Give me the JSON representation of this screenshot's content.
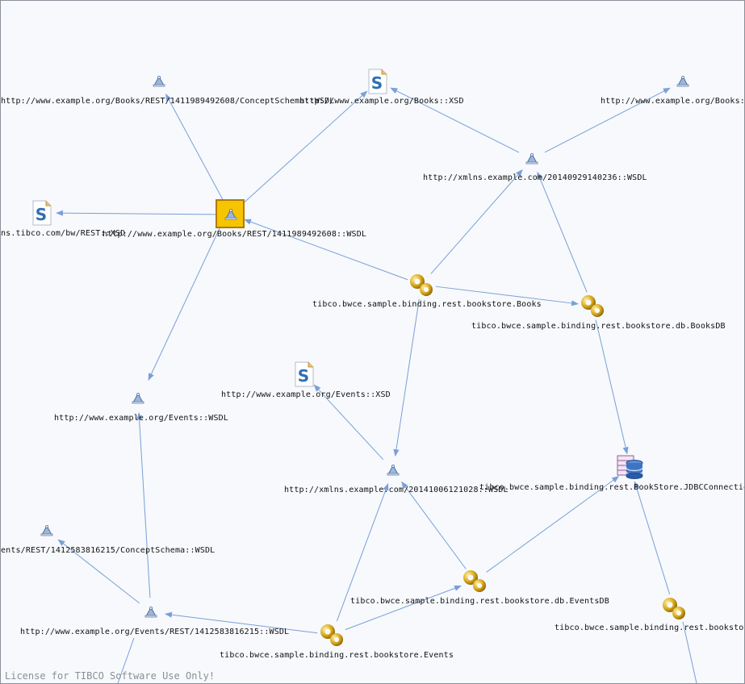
{
  "diagram": {
    "license_text": "License for TIBCO Software Use Only!",
    "nodes": [
      {
        "id": "n1",
        "kind": "wsdl",
        "label": "http://www.example.org/Books/REST/1411989492608/ConceptSchema::WSDL"
      },
      {
        "id": "n2",
        "kind": "xsd",
        "label": "http://www.example.org/Books::XSD"
      },
      {
        "id": "n3",
        "kind": "wsdl",
        "label": "http://www.example.org/Books::"
      },
      {
        "id": "n4",
        "kind": "wsdl",
        "label": "http://xmlns.example.com/20140929140236::WSDL"
      },
      {
        "id": "n5",
        "kind": "xsd",
        "label": "ns.tibco.com/bw/REST::XSD"
      },
      {
        "id": "n6",
        "kind": "wsdl-selected",
        "label": "http://www.example.org/Books/REST/1411989492608::WSDL"
      },
      {
        "id": "n7",
        "kind": "module",
        "label": "tibco.bwce.sample.binding.rest.bookstore.Books"
      },
      {
        "id": "n8",
        "kind": "module",
        "label": "tibco.bwce.sample.binding.rest.bookstore.db.BooksDB"
      },
      {
        "id": "n9",
        "kind": "xsd",
        "label": "http://www.example.org/Events::XSD"
      },
      {
        "id": "n10",
        "kind": "wsdl",
        "label": "http://www.example.org/Events::WSDL"
      },
      {
        "id": "n11",
        "kind": "wsdl",
        "label": "http://xmlns.example.com/20141006121028::WSDL"
      },
      {
        "id": "n12",
        "kind": "jdbc",
        "label": "tibco.bwce.sample.binding.rest.BookStore.JDBCConnection"
      },
      {
        "id": "n13",
        "kind": "wsdl",
        "label": "ents/REST/1412583816215/ConceptSchema::WSDL"
      },
      {
        "id": "n14",
        "kind": "module",
        "label": "tibco.bwce.sample.binding.rest.bookstore.db.EventsDB"
      },
      {
        "id": "n15",
        "kind": "module",
        "label": "tibco.bwce.sample.binding.rest.bookstore"
      },
      {
        "id": "n16",
        "kind": "wsdl",
        "label": "http://www.example.org/Events/REST/1412583816215::WSDL"
      },
      {
        "id": "n17",
        "kind": "module",
        "label": "tibco.bwce.sample.binding.rest.bookstore.Events"
      }
    ],
    "edges": [
      [
        "n6",
        "n1"
      ],
      [
        "n6",
        "n2"
      ],
      [
        "n6",
        "n5"
      ],
      [
        "n6",
        "n10"
      ],
      [
        "n4",
        "n2"
      ],
      [
        "n4",
        "n3"
      ],
      [
        "n7",
        "n6"
      ],
      [
        "n7",
        "n4"
      ],
      [
        "n7",
        "n8"
      ],
      [
        "n7",
        "n11"
      ],
      [
        "n8",
        "n4"
      ],
      [
        "n8",
        "n12"
      ],
      [
        "n11",
        "n9"
      ],
      [
        "n14",
        "n11"
      ],
      [
        "n14",
        "n12"
      ],
      [
        "n15",
        "n12"
      ],
      [
        "n16",
        "n10"
      ],
      [
        "n16",
        "n13"
      ],
      [
        "n17",
        "n16"
      ],
      [
        "n17",
        "n11"
      ],
      [
        "n17",
        "n14"
      ]
    ],
    "colors": {
      "edge": "#7a9fd8",
      "selected_fill": "#f6c400",
      "license": "#8a8f99"
    }
  }
}
